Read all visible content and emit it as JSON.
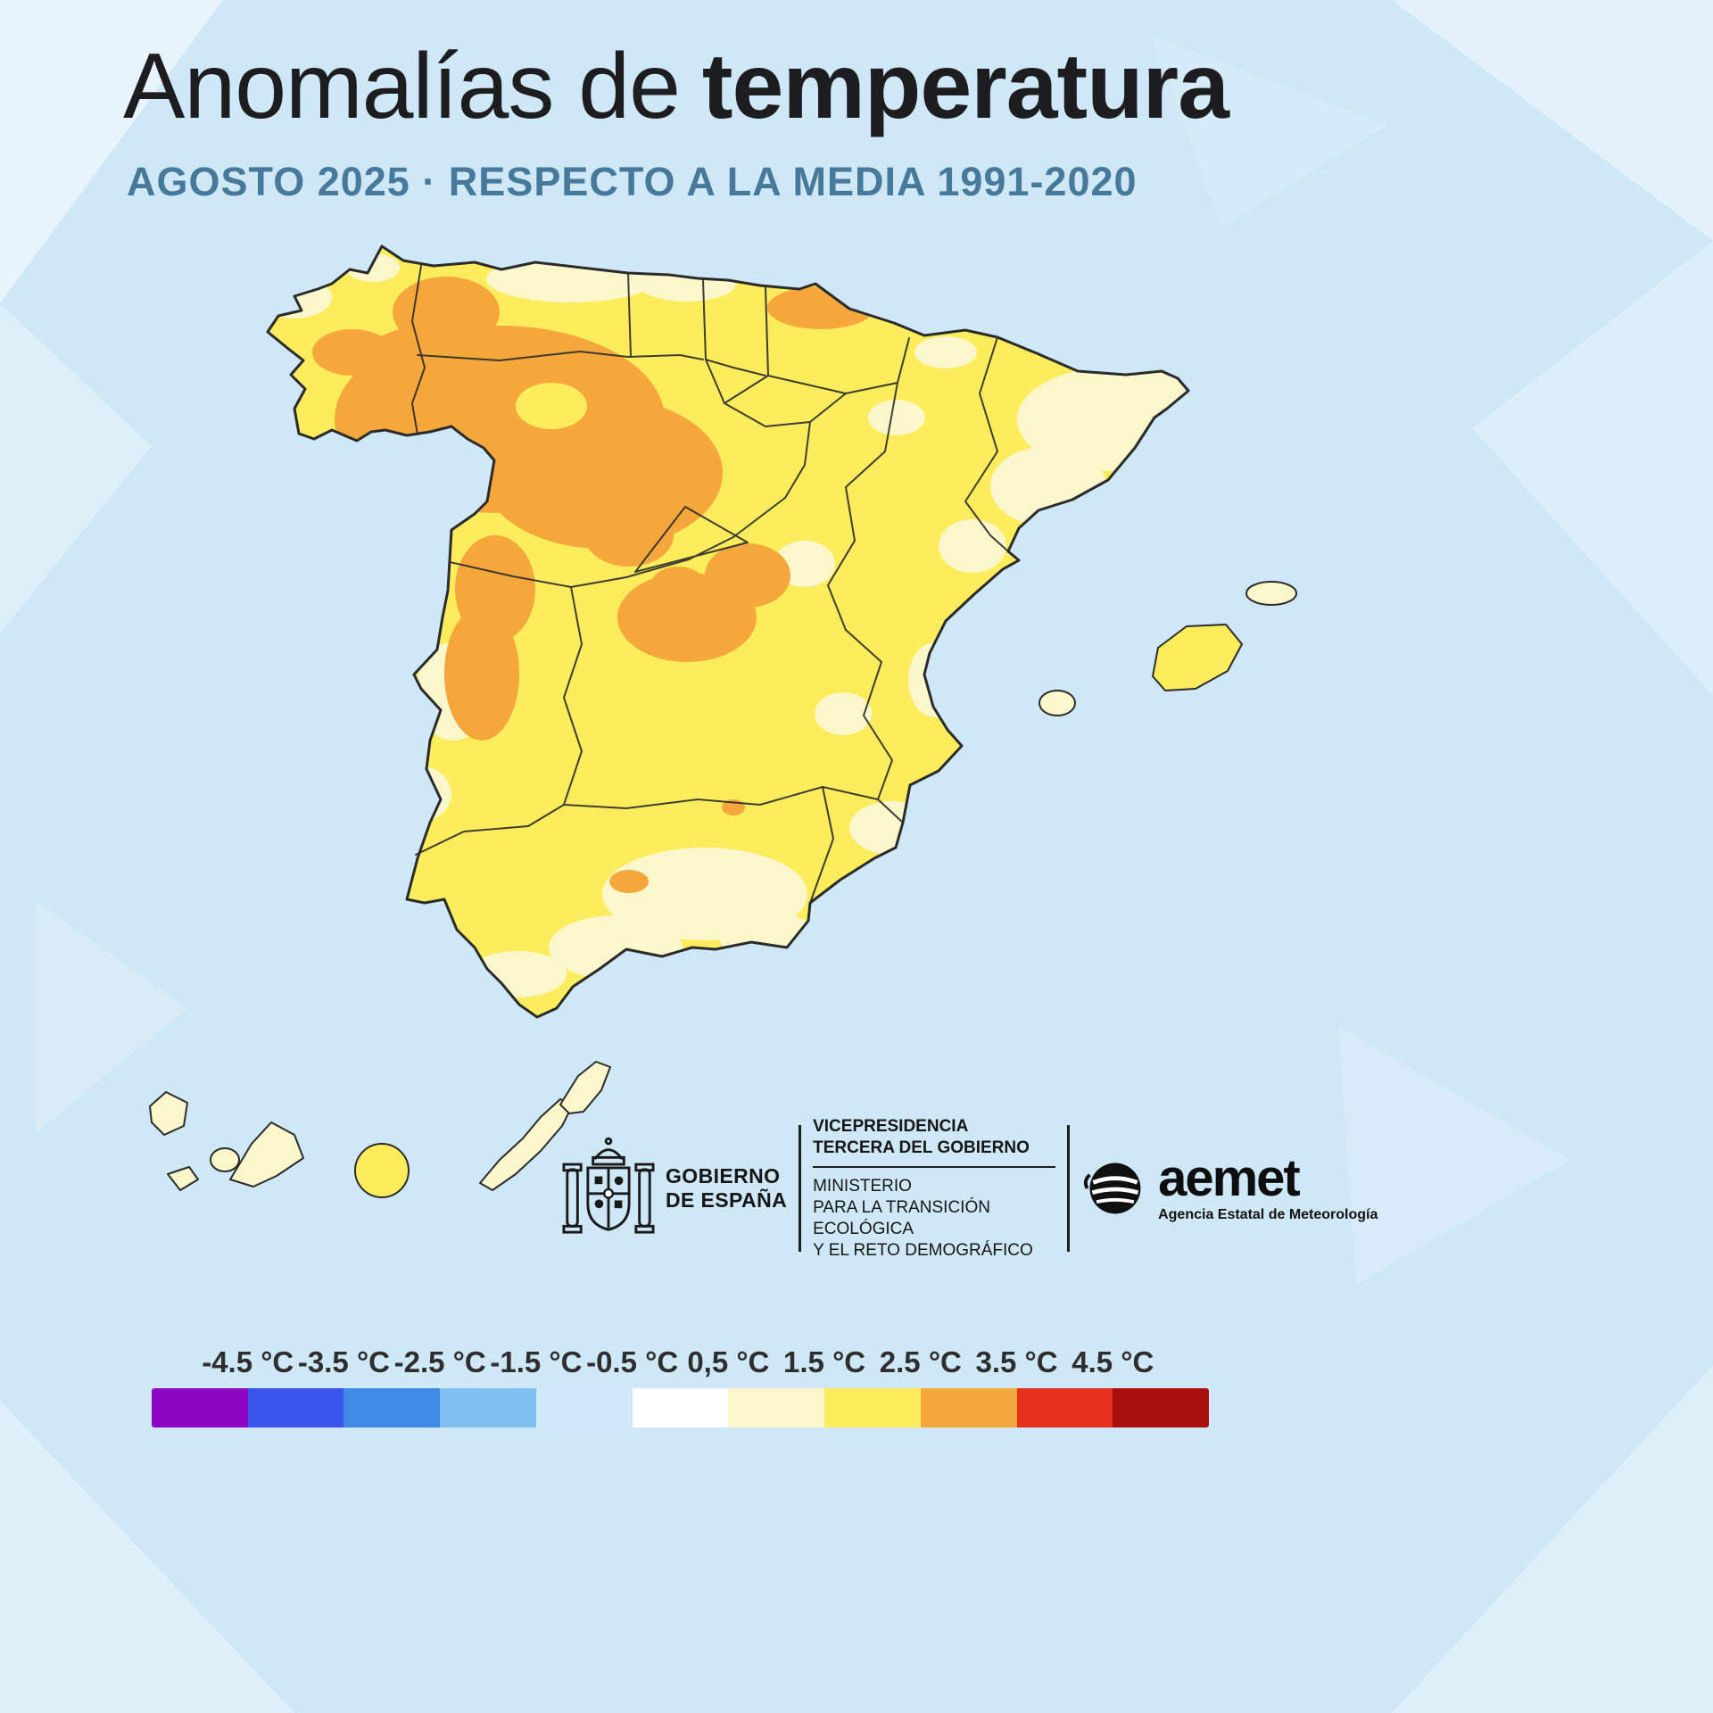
{
  "title": {
    "light": "Anomalías de",
    "bold": "temperatura"
  },
  "subtitle": "AGOSTO 2025 · RESPECTO A LA MEDIA 1991-2020",
  "palette": {
    "title_text": "#1d1d1f",
    "subtitle_text": "#47799b",
    "sea_background": "#cfe8f7"
  },
  "map": {
    "colors": {
      "sea": "#cfe8f7",
      "base": "#fdec5c",
      "cream": "#fbf7cb",
      "orange": "#f6a73c",
      "outline": "#2b2b2b"
    }
  },
  "footer": {
    "gobierno": {
      "line1": "GOBIERNO",
      "line2": "DE ESPAÑA"
    },
    "vicepresidencia": {
      "line1": "VICEPRESIDENCIA",
      "line2": "TERCERA DEL GOBIERNO"
    },
    "ministerio": {
      "line1": "MINISTERIO",
      "line2": "PARA LA TRANSICIÓN ECOLÓGICA",
      "line3": "Y EL RETO DEMOGRÁFICO"
    },
    "aemet": {
      "wordmark": "aemet",
      "tagline": "Agencia Estatal de Meteorología"
    }
  },
  "legend": {
    "labels": [
      "-4.5 °C",
      "-3.5 °C",
      "-2.5 °C",
      "-1.5 °C",
      "-0.5 °C",
      "0,5 °C",
      "1.5 °C",
      "2.5 °C",
      "3.5 °C",
      "4.5 °C"
    ],
    "colors": [
      "#8d06c3",
      "#3a53e8",
      "#3f8ae5",
      "#7fc0f0",
      "#cfe9fa",
      "#ffffff",
      "#fbf7cb",
      "#fdec5c",
      "#f6a73c",
      "#e6311f",
      "#a80f0c"
    ]
  }
}
